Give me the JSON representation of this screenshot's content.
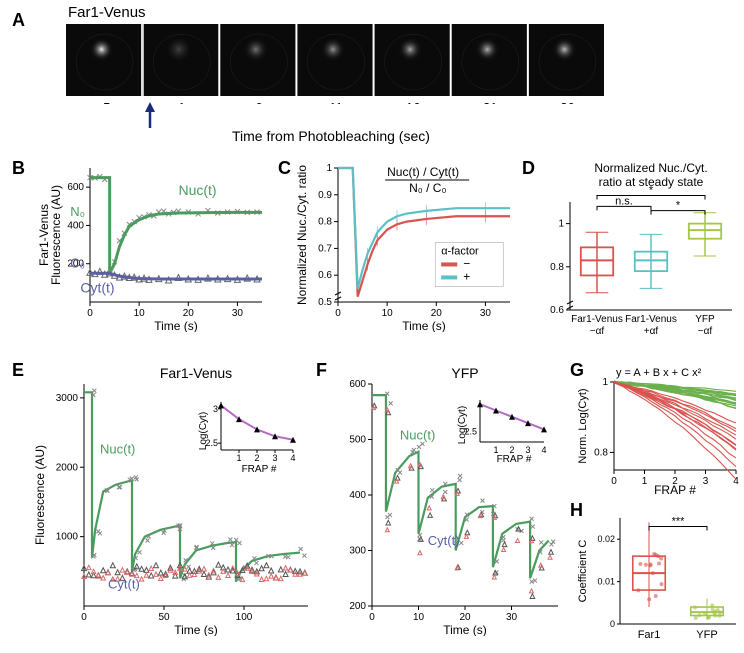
{
  "panelA": {
    "label": "A",
    "strain_label": "Far1-Venus",
    "timepoints": [
      -5,
      1,
      6,
      11,
      16,
      21,
      26
    ],
    "xaxis_label": "Time from Photobleaching (sec)",
    "image_bg": "#0a0a0a",
    "cell_glow": "#bababa",
    "arrow_color": "#1a2b7a"
  },
  "panelB": {
    "label": "B",
    "ylabel": "Far1-Venus\nFluorescence (AU)",
    "xlabel": "Time (s)",
    "ylim": [
      0,
      700
    ],
    "ytick": [
      200,
      400,
      600
    ],
    "xlim": [
      0,
      35
    ],
    "xtick": [
      0,
      10,
      20,
      30
    ],
    "nuc_color": "#4a9c5e",
    "cyt_color": "#5a5fa8",
    "nuc_label": "Nuc(t)",
    "cyt_label": "Cyt(t)",
    "n0_label": "N₀",
    "c0_label": "C₀",
    "label_fontsize": 13,
    "nuc_line": [
      [
        0,
        650
      ],
      [
        2,
        650
      ],
      [
        4,
        650
      ],
      [
        4,
        150
      ],
      [
        5,
        200
      ],
      [
        6,
        290
      ],
      [
        7,
        350
      ],
      [
        8,
        395
      ],
      [
        10,
        430
      ],
      [
        12,
        450
      ],
      [
        14,
        460
      ],
      [
        18,
        465
      ],
      [
        24,
        467
      ],
      [
        30,
        468
      ],
      [
        35,
        468
      ]
    ],
    "cyt_line": [
      [
        0,
        150
      ],
      [
        4,
        150
      ],
      [
        4,
        150
      ],
      [
        6,
        135
      ],
      [
        8,
        128
      ],
      [
        10,
        123
      ],
      [
        14,
        120
      ],
      [
        20,
        120
      ],
      [
        30,
        120
      ],
      [
        35,
        120
      ]
    ],
    "nuc_pts": [
      [
        0,
        650
      ],
      [
        1,
        648
      ],
      [
        2,
        655
      ],
      [
        3,
        640
      ],
      [
        4,
        150
      ],
      [
        5,
        210
      ],
      [
        6,
        320
      ],
      [
        7,
        360
      ],
      [
        8,
        405
      ],
      [
        9,
        420
      ],
      [
        10,
        440
      ],
      [
        11,
        445
      ],
      [
        12,
        455
      ],
      [
        13,
        450
      ],
      [
        14,
        470
      ],
      [
        15,
        475
      ],
      [
        16,
        460
      ],
      [
        17,
        468
      ],
      [
        18,
        475
      ],
      [
        20,
        470
      ],
      [
        22,
        460
      ],
      [
        24,
        478
      ],
      [
        26,
        465
      ],
      [
        28,
        470
      ],
      [
        30,
        472
      ],
      [
        32,
        468
      ],
      [
        34,
        470
      ]
    ],
    "cyt_pts": [
      [
        0,
        155
      ],
      [
        1,
        148
      ],
      [
        2,
        160
      ],
      [
        3,
        145
      ],
      [
        4,
        152
      ],
      [
        5,
        140
      ],
      [
        6,
        130
      ],
      [
        7,
        135
      ],
      [
        8,
        128
      ],
      [
        9,
        130
      ],
      [
        10,
        120
      ],
      [
        11,
        125
      ],
      [
        12,
        118
      ],
      [
        14,
        122
      ],
      [
        16,
        115
      ],
      [
        18,
        128
      ],
      [
        20,
        120
      ],
      [
        22,
        118
      ],
      [
        24,
        125
      ],
      [
        26,
        120
      ],
      [
        28,
        122
      ],
      [
        30,
        118
      ],
      [
        32,
        125
      ],
      [
        34,
        120
      ]
    ]
  },
  "panelC": {
    "label": "C",
    "ylabel": "Normalized Nuc./Cyt. ratio",
    "xlabel": "Time (s)",
    "ylim": [
      0.5,
      1.0
    ],
    "ytick": [
      0.5,
      0.6,
      0.7,
      0.8,
      0.9,
      1.0
    ],
    "xlim": [
      0,
      35
    ],
    "xtick": [
      0,
      10,
      20,
      30
    ],
    "formula": "Nuc(t) / Cyt(t)",
    "formula2": "N₀ / C₀",
    "legend_title": "α-factor",
    "legend_items": [
      {
        "label": "−",
        "color": "#d9534f"
      },
      {
        "label": "+",
        "color": "#5bc0c4"
      }
    ],
    "minus_line": [
      [
        0,
        1.0
      ],
      [
        3,
        1.0
      ],
      [
        4,
        0.52
      ],
      [
        5,
        0.58
      ],
      [
        6,
        0.64
      ],
      [
        7,
        0.69
      ],
      [
        8,
        0.73
      ],
      [
        10,
        0.77
      ],
      [
        12,
        0.79
      ],
      [
        14,
        0.8
      ],
      [
        18,
        0.81
      ],
      [
        24,
        0.82
      ],
      [
        30,
        0.82
      ],
      [
        35,
        0.82
      ]
    ],
    "plus_line": [
      [
        0,
        1.0
      ],
      [
        3,
        1.0
      ],
      [
        4,
        0.55
      ],
      [
        5,
        0.62
      ],
      [
        6,
        0.68
      ],
      [
        7,
        0.72
      ],
      [
        8,
        0.76
      ],
      [
        10,
        0.8
      ],
      [
        12,
        0.82
      ],
      [
        14,
        0.83
      ],
      [
        18,
        0.84
      ],
      [
        24,
        0.85
      ],
      [
        30,
        0.85
      ],
      [
        35,
        0.85
      ]
    ]
  },
  "panelD": {
    "label": "D",
    "title": "Normalized Nuc./Cyt.\nratio at steady state",
    "ylim": [
      0.6,
      1.1
    ],
    "ytick": [
      0.6,
      0.8,
      1.0
    ],
    "groups": [
      "Far1-Venus\n−αf",
      "Far1-Venus\n+αf",
      "YFP\n−αf"
    ],
    "boxes": [
      {
        "min": 0.68,
        "q1": 0.76,
        "med": 0.83,
        "q3": 0.89,
        "max": 0.96,
        "color": "#d9534f"
      },
      {
        "min": 0.7,
        "q1": 0.78,
        "med": 0.83,
        "q3": 0.87,
        "max": 0.95,
        "color": "#5bc0c4"
      },
      {
        "min": 0.85,
        "q1": 0.93,
        "med": 0.97,
        "q3": 1.0,
        "max": 1.05,
        "color": "#a4c64a"
      }
    ],
    "sig": [
      {
        "a": 0,
        "b": 1,
        "y": 1.08,
        "label": "n.s."
      },
      {
        "a": 1,
        "b": 2,
        "y": 1.06,
        "label": "*"
      },
      {
        "a": 0,
        "b": 2,
        "y": 1.13,
        "label": "*"
      }
    ]
  },
  "panelE": {
    "label": "E",
    "title": "Far1-Venus",
    "ylabel": "Fluorescence (AU)",
    "xlabel": "Time (s)",
    "ylim": [
      0,
      3200
    ],
    "ytick": [
      1000,
      2000,
      3000
    ],
    "xlim": [
      0,
      140
    ],
    "xtick": [
      0,
      50,
      100
    ],
    "nuc_color": "#4a9c5e",
    "cyt_color": "#5a5fa8",
    "cyt2_color": "#d96b6b",
    "nuc_label": "Nuc(t)",
    "cyt_label": "Cyt(t)",
    "nuc_line": [
      [
        0,
        3080
      ],
      [
        5,
        3080
      ],
      [
        5,
        700
      ],
      [
        7,
        1100
      ],
      [
        12,
        1650
      ],
      [
        20,
        1750
      ],
      [
        28,
        1800
      ],
      [
        30,
        1800
      ],
      [
        30,
        500
      ],
      [
        32,
        750
      ],
      [
        38,
        1000
      ],
      [
        48,
        1100
      ],
      [
        58,
        1150
      ],
      [
        60,
        1150
      ],
      [
        60,
        400
      ],
      [
        63,
        600
      ],
      [
        70,
        800
      ],
      [
        80,
        870
      ],
      [
        90,
        910
      ],
      [
        95,
        920
      ],
      [
        95,
        350
      ],
      [
        98,
        500
      ],
      [
        105,
        650
      ],
      [
        115,
        720
      ],
      [
        125,
        750
      ],
      [
        135,
        770
      ]
    ],
    "inset": {
      "ylabel": "Log(Cyt)",
      "xlabel": "FRAP #",
      "xlim": [
        0,
        4
      ],
      "xtick": [
        1,
        2,
        3,
        4
      ],
      "ylim": [
        2.4,
        3.1
      ],
      "ytick": [
        2.5,
        3.0
      ],
      "pts": [
        [
          0,
          3.05
        ],
        [
          1,
          2.85
        ],
        [
          2,
          2.7
        ],
        [
          3,
          2.6
        ],
        [
          4,
          2.55
        ]
      ],
      "line_color": "#b46bc4"
    }
  },
  "panelF": {
    "label": "F",
    "title": "YFP",
    "xlabel": "Time (s)",
    "ylim": [
      200,
      600
    ],
    "ytick": [
      200,
      300,
      400,
      500,
      600
    ],
    "xlim": [
      0,
      40
    ],
    "xtick": [
      0,
      10,
      20,
      30
    ],
    "nuc_color": "#4a9c5e",
    "cyt_color": "#5a5fa8",
    "cyt2_color": "#d96b6b",
    "nuc_label": "Nuc(t)",
    "cyt_label": "Cyt(t)",
    "nuc_line": [
      [
        0,
        580
      ],
      [
        3,
        580
      ],
      [
        3,
        370
      ],
      [
        5,
        440
      ],
      [
        8,
        470
      ],
      [
        10,
        478
      ],
      [
        10,
        330
      ],
      [
        12,
        395
      ],
      [
        15,
        415
      ],
      [
        18,
        420
      ],
      [
        18,
        300
      ],
      [
        20,
        360
      ],
      [
        23,
        378
      ],
      [
        26,
        380
      ],
      [
        26,
        270
      ],
      [
        28,
        330
      ],
      [
        31,
        348
      ],
      [
        34,
        352
      ],
      [
        34,
        250
      ],
      [
        36,
        300
      ],
      [
        38,
        318
      ]
    ],
    "inset": {
      "ylabel": "Log(Cyt)",
      "xlabel": "FRAP #",
      "xlim": [
        0,
        4
      ],
      "xtick": [
        1,
        2,
        3,
        4
      ],
      "ylim": [
        2.4,
        2.8
      ],
      "ytick": [
        2.5
      ],
      "pts": [
        [
          0,
          2.76
        ],
        [
          1,
          2.7
        ],
        [
          2,
          2.64
        ],
        [
          3,
          2.58
        ],
        [
          4,
          2.52
        ]
      ],
      "line_color": "#b46bc4"
    }
  },
  "panelG": {
    "label": "G",
    "formula": "y = A + B x + C x²",
    "ylabel": "Norm. Log(Cyt)",
    "xlabel": "FRAP #",
    "ylim": [
      0.75,
      1.0
    ],
    "ytick": [
      0.8,
      1.0
    ],
    "xlim": [
      0,
      4
    ],
    "xtick": [
      0,
      1,
      2,
      3,
      4
    ],
    "green_color": "#6ab04c",
    "red_color": "#d9534f",
    "n_green": 18,
    "n_red": 12
  },
  "panelH": {
    "label": "H",
    "ylabel": "Coefficient C",
    "ylim": [
      0,
      0.025
    ],
    "ytick": [
      0,
      0.01,
      0.02
    ],
    "groups": [
      "Far1",
      "YFP"
    ],
    "boxes": [
      {
        "min": 0.004,
        "q1": 0.008,
        "med": 0.012,
        "q3": 0.016,
        "max": 0.024,
        "color": "#d9534f"
      },
      {
        "min": 0.001,
        "q1": 0.002,
        "med": 0.0028,
        "q3": 0.004,
        "max": 0.006,
        "color": "#a4c64a"
      }
    ],
    "sig_label": "***"
  }
}
